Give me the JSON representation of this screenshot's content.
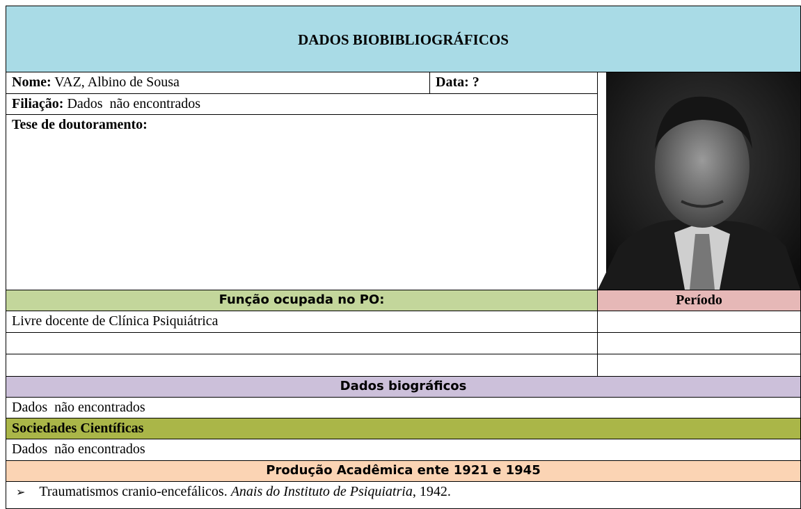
{
  "header": {
    "title": "DADOS BIOBIBLIOGRÁFICOS"
  },
  "fields": {
    "nome": {
      "label": "Nome:",
      "value": "VAZ, Albino de Sousa"
    },
    "data": {
      "label": "Data:",
      "value": "?"
    },
    "filiacao": {
      "label": "Filiação:",
      "value": "Dados  não encontrados"
    },
    "tese": {
      "label": "Tese de doutoramento:"
    }
  },
  "funcao": {
    "header": "Função ocupada no PO:",
    "periodo_header": "Período",
    "rows": [
      "Livre docente de Clínica Psiquiátrica"
    ]
  },
  "biografia": {
    "header": "Dados biográficos",
    "text": "Dados  não encontrados"
  },
  "sociedades": {
    "header": "Sociedades Científicas",
    "text": "Dados  não encontrados"
  },
  "producao": {
    "header": "Produção Acadêmica ente 1921 e 1945",
    "items": [
      {
        "title": "Traumatismos cranio-encefálicos.",
        "journal": "Anais do Instituto de Psiquiatria",
        "year": ", 1942."
      }
    ]
  }
}
